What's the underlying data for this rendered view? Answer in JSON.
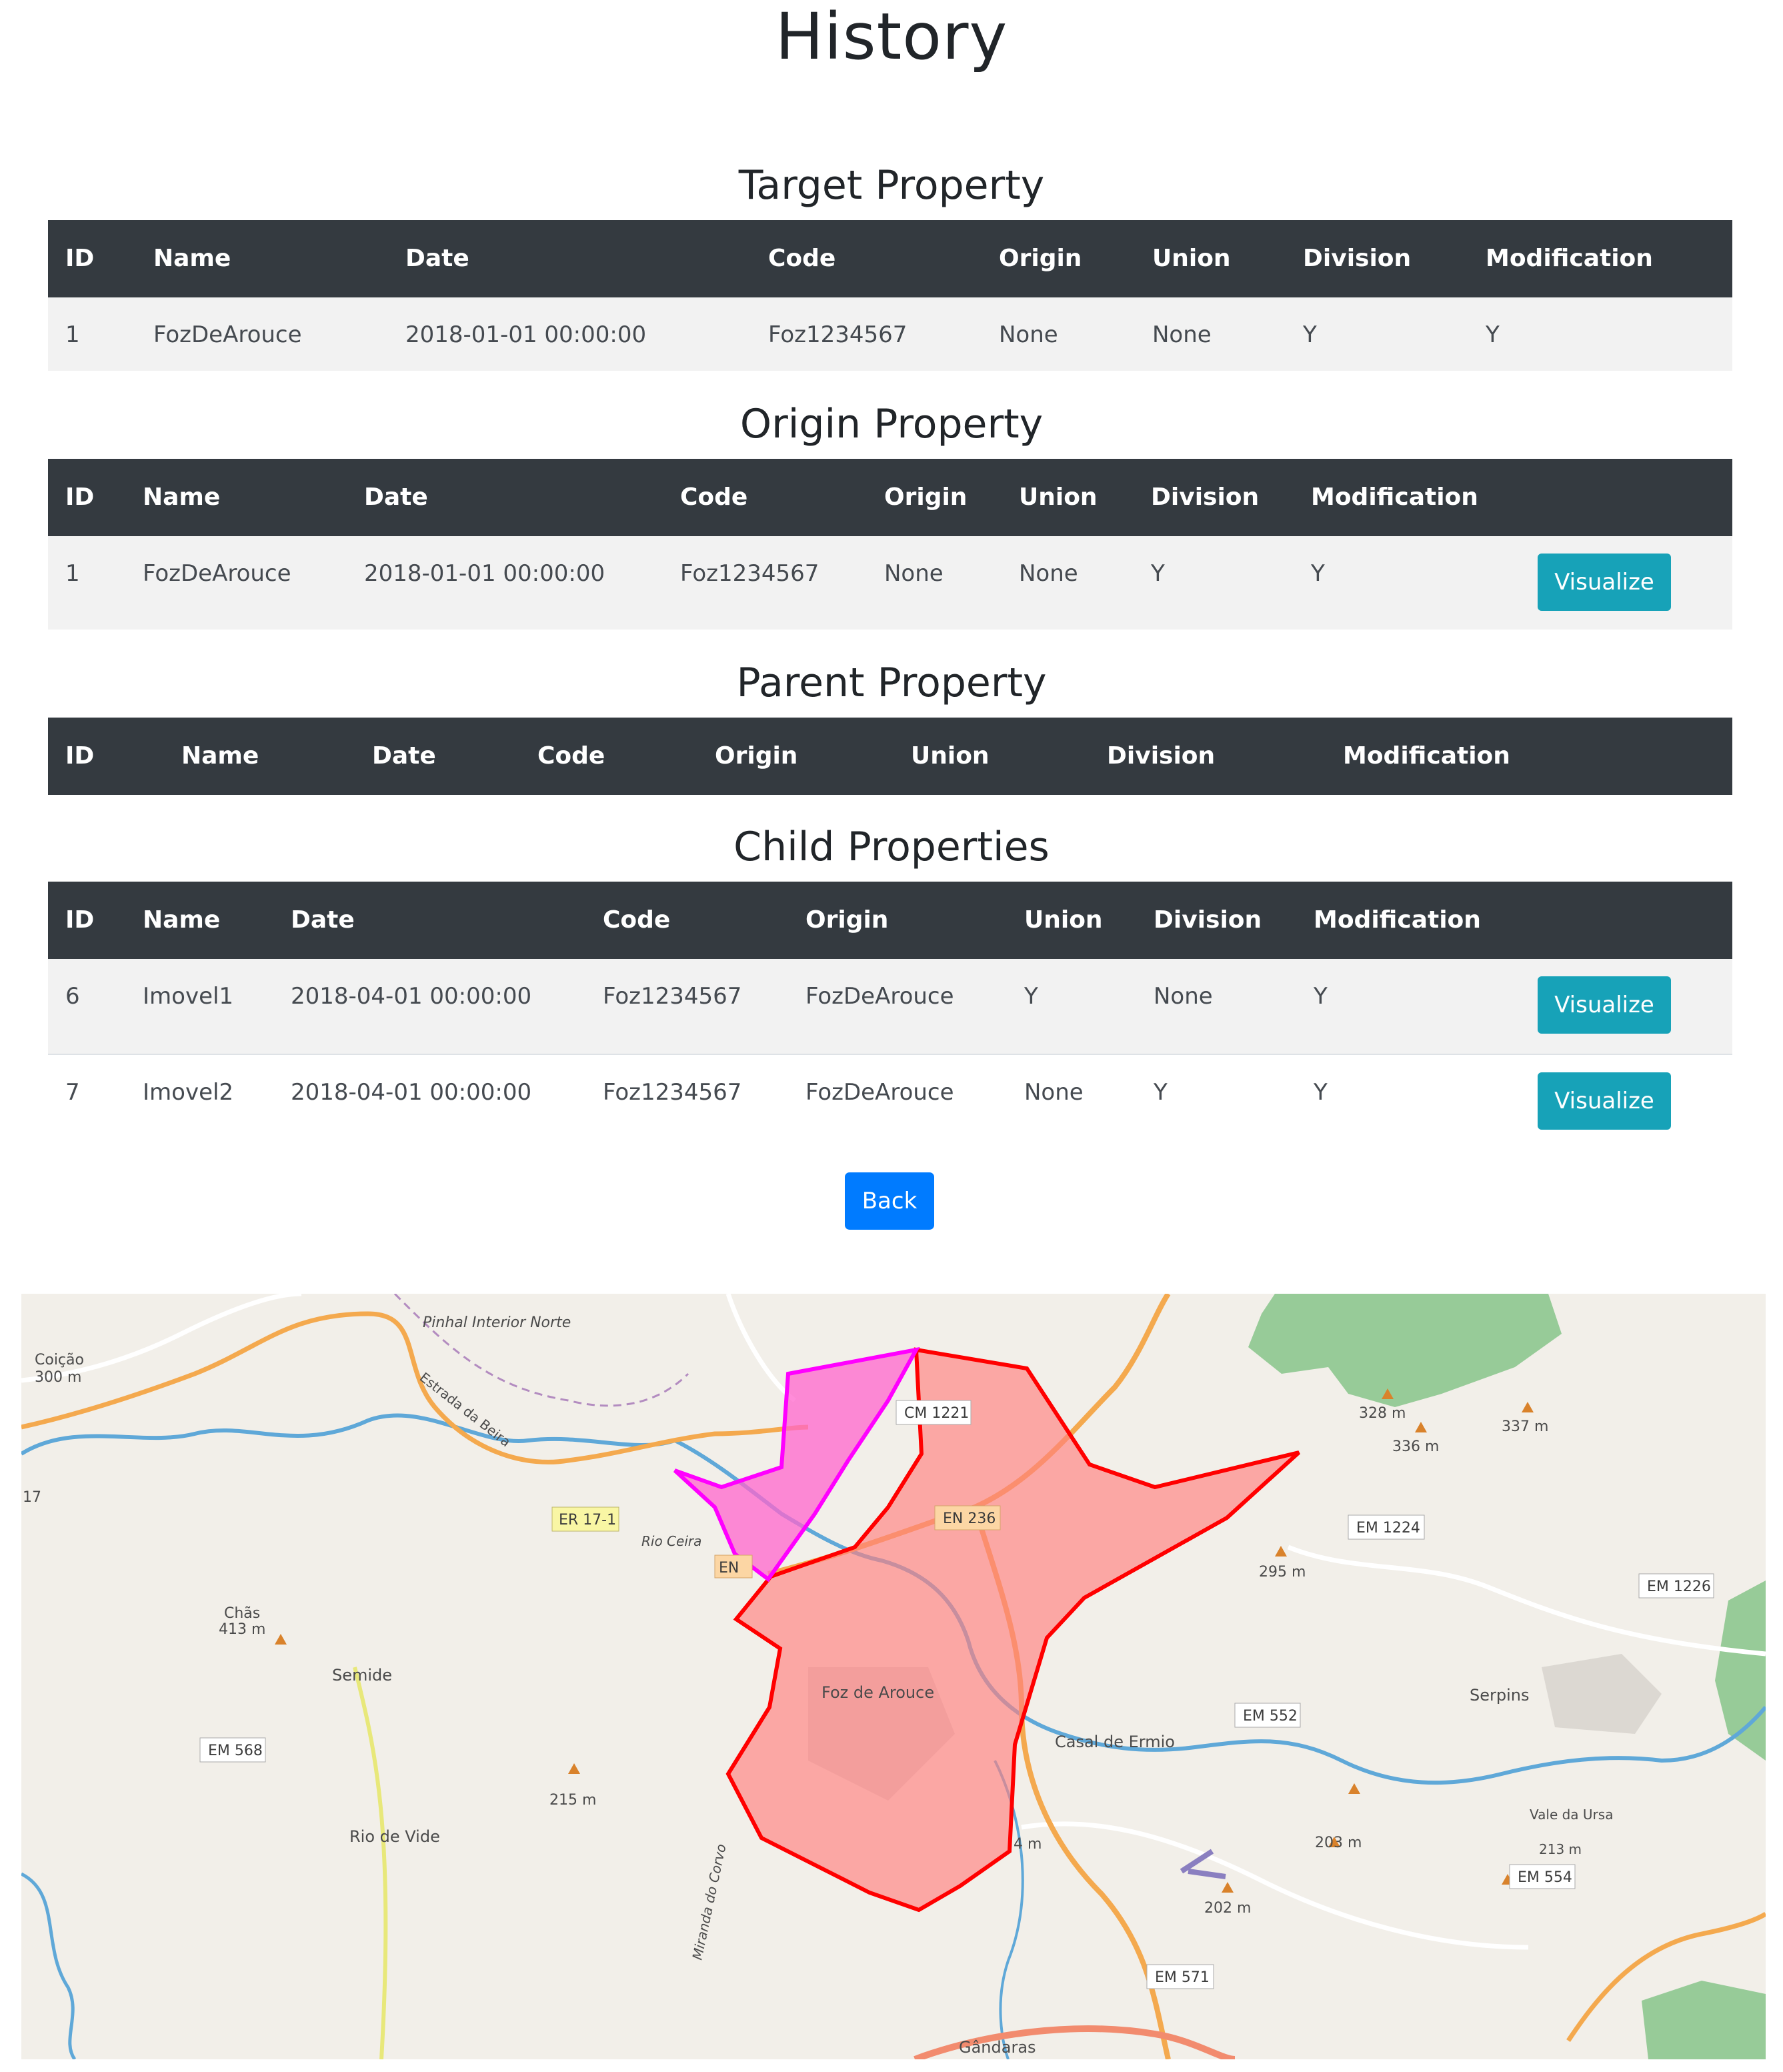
{
  "page": {
    "title": "History"
  },
  "columns": {
    "id": "ID",
    "name": "Name",
    "date": "Date",
    "code": "Code",
    "origin": "Origin",
    "union": "Union",
    "division": "Division",
    "modification": "Modification"
  },
  "target": {
    "title": "Target Property",
    "rows": [
      {
        "id": "1",
        "name": "FozDeArouce",
        "date": "2018-01-01 00:00:00",
        "code": "Foz1234567",
        "origin": "None",
        "union": "None",
        "division": "Y",
        "modification": "Y"
      }
    ]
  },
  "origin_section": {
    "title": "Origin Property",
    "rows": [
      {
        "id": "1",
        "name": "FozDeArouce",
        "date": "2018-01-01 00:00:00",
        "code": "Foz1234567",
        "origin": "None",
        "union": "None",
        "division": "Y",
        "modification": "Y",
        "action": "Visualize"
      }
    ]
  },
  "parent": {
    "title": "Parent Property",
    "rows": []
  },
  "children": {
    "title": "Child Properties",
    "rows": [
      {
        "id": "6",
        "name": "Imovel1",
        "date": "2018-04-01 00:00:00",
        "code": "Foz1234567",
        "origin": "FozDeArouce",
        "union": "Y",
        "division": "None",
        "modification": "Y",
        "action": "Visualize"
      },
      {
        "id": "7",
        "name": "Imovel2",
        "date": "2018-04-01 00:00:00",
        "code": "Foz1234567",
        "origin": "FozDeArouce",
        "union": "None",
        "division": "Y",
        "modification": "Y",
        "action": "Visualize"
      }
    ]
  },
  "back_label": "Back",
  "map": {
    "places": [
      "Pinhal Interior Norte",
      "Coição",
      "300 m",
      "Estrada da Beira",
      "ER 17-1",
      "Rio Ceira",
      "EN",
      "Chãs",
      "413 m",
      "Semide",
      "EM 568",
      "215 m",
      "Rio de Vide",
      "CM 1221",
      "EN 236",
      "Foz de Arouce",
      "4 m",
      "Miranda do Corvo",
      "Gândaras",
      "Casal de Ermio",
      "EM 552",
      "202 m",
      "EM 571",
      "295 m",
      "328 m",
      "336 m",
      "337 m",
      "EM 1224",
      "EM 1226",
      "Serpins",
      "Vale da Ursa",
      "213 m",
      "EM 554",
      "203 m",
      "17"
    ],
    "colors": {
      "target_outline": "#ff0000",
      "target_fill": "#ff8080",
      "child_outline": "#ff00ff",
      "child_fill": "#ff66cc",
      "forest": "#8dc68f",
      "water": "#5fa8d8",
      "road_major": "#f4a94e"
    }
  }
}
